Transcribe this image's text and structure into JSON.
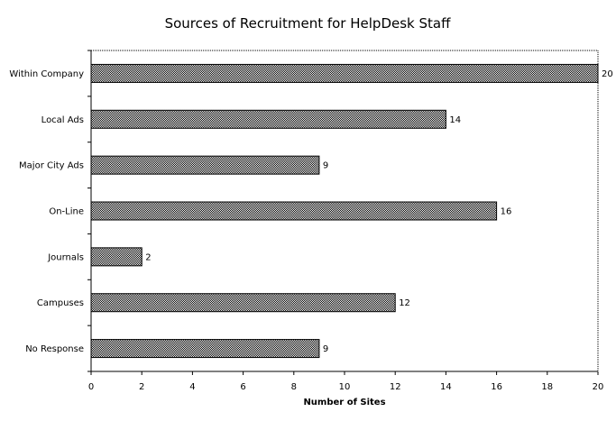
{
  "chart_data": {
    "type": "bar",
    "orientation": "horizontal",
    "title": "Sources of Recruitment for HelpDesk Staff",
    "xlabel": "Number of Sites",
    "ylabel": "",
    "categories": [
      "Within Company",
      "Local Ads",
      "Major City Ads",
      "On-Line",
      "Journals",
      "Campuses",
      "No Response"
    ],
    "values": [
      20,
      14,
      9,
      16,
      2,
      12,
      9
    ],
    "xlim": [
      0,
      20
    ],
    "xticks": [
      0,
      2,
      4,
      6,
      8,
      10,
      12,
      14,
      16,
      18,
      20
    ],
    "grid": false,
    "legend": "none",
    "bar_fill": "#9a9a9a",
    "bar_stroke": "#000000",
    "frame_color": "#000000"
  }
}
